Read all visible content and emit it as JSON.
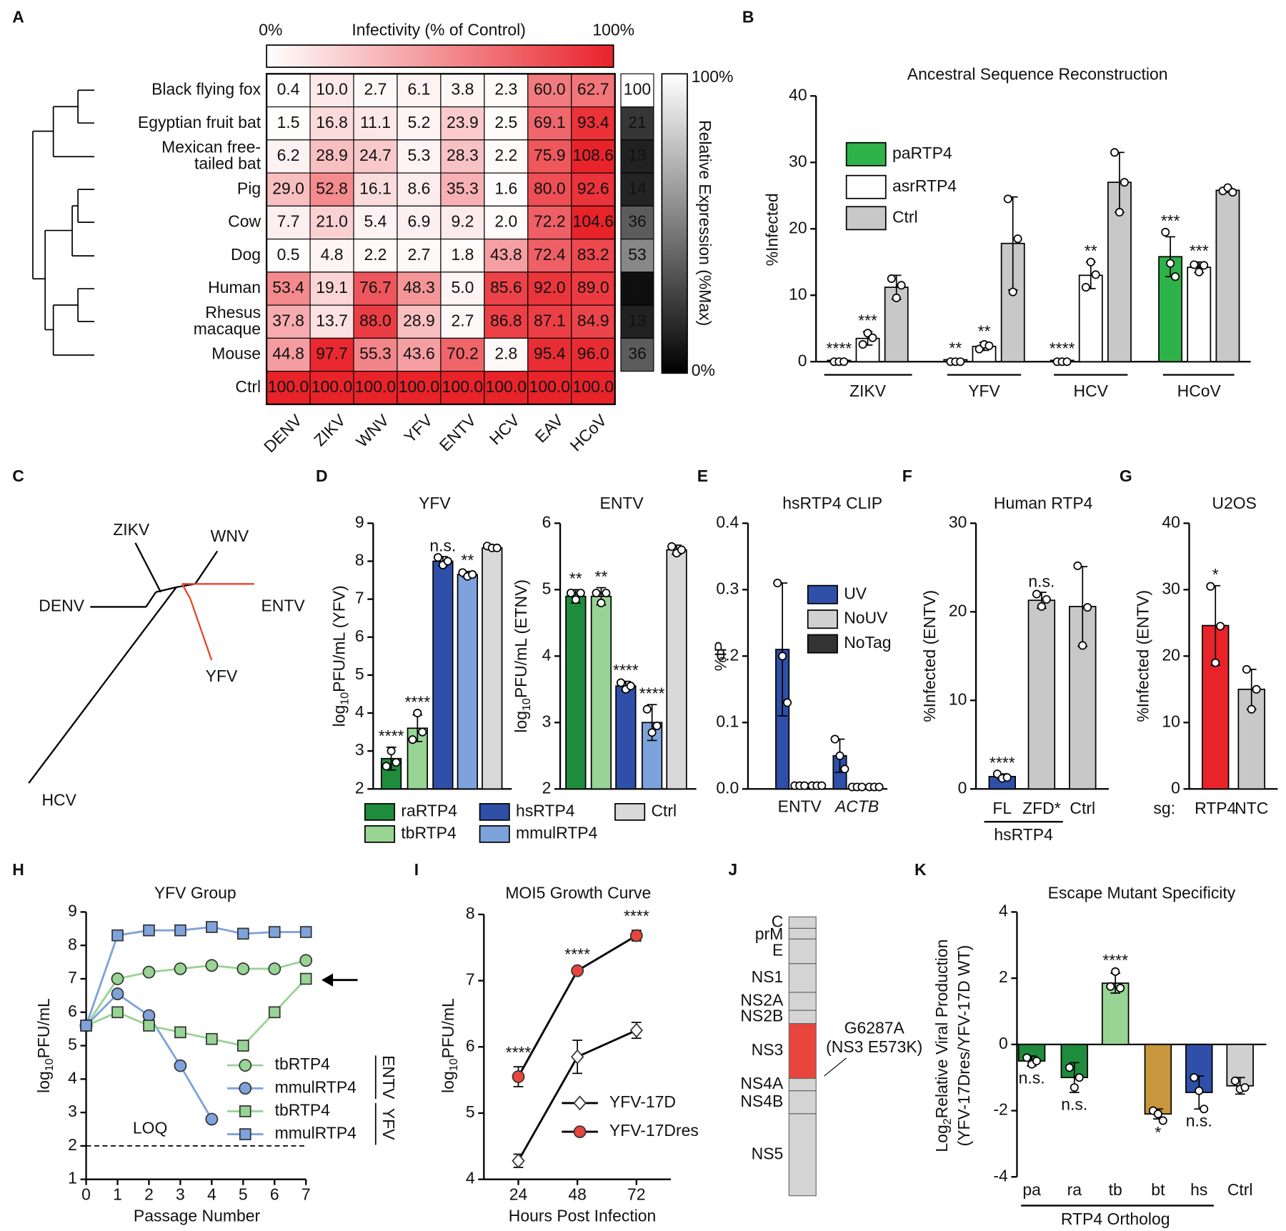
{
  "panel_labels": [
    "A",
    "B",
    "C",
    "D",
    "E",
    "F",
    "G",
    "H",
    "I",
    "J",
    "K"
  ],
  "tree_c": {
    "labels": [
      "ZIKV",
      "WNV",
      "DENV",
      "ENTV",
      "YFV",
      "HCV"
    ]
  },
  "genome_j": {
    "segments": [
      "C",
      "prM",
      "E",
      "NS1",
      "NS2A",
      "NS2B",
      "NS3",
      "NS4A",
      "NS4B",
      "NS5"
    ],
    "highlight": "NS3",
    "mutation": "G6287A",
    "mutation_detail": "(NS3 E573K)"
  },
  "chart_data": [
    {
      "type": "heatmap",
      "title": "Infectivity (% of Control)",
      "color": "#e8232a",
      "clim": [
        0,
        100
      ],
      "colorbar_ticks": [
        {
          "value": 0,
          "label": "0%"
        },
        {
          "value": 100,
          "label": "100%"
        }
      ],
      "rows": [
        "Black flying fox",
        "Egyptian fruit bat",
        [
          "Mexican free-",
          "tailed bat"
        ],
        "Pig",
        "Cow",
        "Dog",
        "Human",
        [
          "Rhesus",
          "macaque"
        ],
        "Mouse",
        "Ctrl"
      ],
      "columns": [
        "DENV",
        "ZIKV",
        "WNV",
        "YFV",
        "ENTV",
        "HCV",
        "EAV",
        "HCoV"
      ],
      "values": [
        [
          0.4,
          10.0,
          2.7,
          6.1,
          3.8,
          2.3,
          60.0,
          62.7
        ],
        [
          1.5,
          16.8,
          11.1,
          5.2,
          23.9,
          2.5,
          69.1,
          93.4
        ],
        [
          6.2,
          28.9,
          24.7,
          5.3,
          28.3,
          2.2,
          75.9,
          108.6
        ],
        [
          29.0,
          52.8,
          16.1,
          8.6,
          35.3,
          1.6,
          80.0,
          92.6
        ],
        [
          7.7,
          21.0,
          5.4,
          6.9,
          9.2,
          2.0,
          72.2,
          104.6
        ],
        [
          0.5,
          4.8,
          2.2,
          2.7,
          1.8,
          43.8,
          72.4,
          83.2
        ],
        [
          53.4,
          19.1,
          76.7,
          48.3,
          5.0,
          85.6,
          92.0,
          89.0
        ],
        [
          37.8,
          13.7,
          88.0,
          28.9,
          2.7,
          86.8,
          87.1,
          84.9
        ],
        [
          44.8,
          97.7,
          55.3,
          43.6,
          70.2,
          2.8,
          95.4,
          96.0
        ],
        [
          100.0,
          100.0,
          100.0,
          100.0,
          100.0,
          100.0,
          100.0,
          100.0
        ]
      ],
      "value_labels": [
        [
          "0.4",
          "10.0",
          "2.7",
          "6.1",
          "3.8",
          "2.3",
          "60.0",
          "62.7"
        ],
        [
          "1.5",
          "16.8",
          "11.1",
          "5.2",
          "23.9",
          "2.5",
          "69.1",
          "93.4"
        ],
        [
          "6.2",
          "28.9",
          "24.7",
          "5.3",
          "28.3",
          "2.2",
          "75.9",
          "108.6"
        ],
        [
          "29.0",
          "52.8",
          "16.1",
          "8.6",
          "35.3",
          "1.6",
          "80.0",
          "92.6"
        ],
        [
          "7.7",
          "21.0",
          "5.4",
          "6.9",
          "9.2",
          "2.0",
          "72.2",
          "104.6"
        ],
        [
          "0.5",
          "4.8",
          "2.2",
          "2.7",
          "1.8",
          "43.8",
          "72.4",
          "83.2"
        ],
        [
          "53.4",
          "19.1",
          "76.7",
          "48.3",
          "5.0",
          "85.6",
          "92.0",
          "89.0"
        ],
        [
          "37.8",
          "13.7",
          "88.0",
          "28.9",
          "2.7",
          "86.8",
          "87.1",
          "84.9"
        ],
        [
          "44.8",
          "97.7",
          "55.3",
          "43.6",
          "70.2",
          "2.8",
          "95.4",
          "96.0"
        ],
        [
          "100.0",
          "100.0",
          "100.0",
          "100.0",
          "100.0",
          "100.0",
          "100.0",
          "100.0"
        ]
      ],
      "expression": {
        "title": "Relative Expression (%Max)",
        "clim": [
          0,
          100
        ],
        "colorbar_ticks": [
          {
            "value": 100,
            "label": "100%"
          },
          {
            "value": 0,
            "label": "0%"
          }
        ],
        "values": [
          100,
          21,
          13,
          14,
          36,
          53,
          6,
          13,
          36
        ]
      }
    },
    {
      "type": "bar",
      "title": "Ancestral  Sequence  Reconstruction",
      "y_label": "%Infected",
      "ylim": [
        0,
        40
      ],
      "yticks": [
        0,
        10,
        20,
        30,
        40
      ],
      "categories": [
        "ZIKV",
        "YFV",
        "HCV",
        "HCoV"
      ],
      "series": [
        {
          "name": "paRTP4",
          "color": "#2db34a",
          "values": [
            0.2,
            0.3,
            0.2,
            15.8
          ],
          "errors": [
            0.1,
            0.1,
            0.1,
            3.0
          ],
          "points": [
            [
              0,
              0,
              0
            ],
            [
              0,
              0,
              0
            ],
            [
              0,
              0,
              0
            ],
            [
              19.5,
              14.8,
              12.8
            ]
          ],
          "annotations": [
            "****",
            "**",
            "****",
            "***"
          ]
        },
        {
          "name": "asrRTP4",
          "color": "#ffffff",
          "values": [
            3.5,
            2.3,
            13.0,
            14.2
          ],
          "errors": [
            1.0,
            0.6,
            2.0,
            0.8
          ],
          "points": [
            [
              2.6,
              4.3,
              3.6
            ],
            [
              1.9,
              2.6,
              2.4
            ],
            [
              11.2,
              15.0,
              13.1
            ],
            [
              14.6,
              13.5,
              14.5
            ]
          ],
          "annotations": [
            "***",
            "**",
            "**",
            "***"
          ]
        },
        {
          "name": "Ctrl",
          "color": "#c8c8c8",
          "values": [
            11.2,
            17.8,
            27.0,
            25.8
          ],
          "errors": [
            1.8,
            7.0,
            4.5,
            0.3
          ],
          "points": [
            [
              12.5,
              9.6,
              11.5
            ],
            [
              24.5,
              10.5,
              18.5
            ],
            [
              31.5,
              22.5,
              27.0
            ],
            [
              25.7,
              26.2,
              25.5
            ]
          ],
          "annotations": [
            null,
            null,
            null,
            null
          ]
        }
      ]
    },
    {
      "type": "bar",
      "title": "YFV",
      "y_label": [
        "log",
        "10",
        "PFU/mL (YFV)"
      ],
      "ylim": [
        2,
        9
      ],
      "yticks": [
        2,
        3,
        4,
        5,
        6,
        7,
        8,
        9
      ],
      "categories": [
        "raRTP4",
        "tbRTP4",
        "hsRTP4",
        "mmulRTP4",
        "Ctrl"
      ],
      "colors": [
        "#1e8c3c",
        "#98d494",
        "#2f4fa8",
        "#7ea3dc",
        "#d9d9d9"
      ],
      "values": [
        2.8,
        3.6,
        8.0,
        7.65,
        8.35
      ],
      "errors": [
        0.3,
        0.35,
        0.12,
        0.08,
        0.05
      ],
      "points": [
        [
          2.6,
          3.0,
          2.7
        ],
        [
          3.3,
          4.0,
          3.5
        ],
        [
          8.1,
          7.9,
          8.0
        ],
        [
          7.7,
          7.6,
          7.65
        ],
        [
          8.4,
          8.35,
          8.35
        ]
      ],
      "annotations": [
        "****",
        "****",
        "n.s.",
        "**",
        null
      ]
    },
    {
      "type": "bar",
      "title": "ENTV",
      "y_label": [
        "log",
        "10",
        "PFU/mL (ETNV)"
      ],
      "ylim": [
        2,
        6
      ],
      "yticks": [
        2,
        3,
        4,
        5,
        6
      ],
      "colors": [
        "#1e8c3c",
        "#98d494",
        "#2f4fa8",
        "#7ea3dc",
        "#d9d9d9"
      ],
      "values": [
        4.9,
        4.9,
        3.55,
        3.0,
        5.6
      ],
      "errors": [
        0.1,
        0.13,
        0.07,
        0.27,
        0.07
      ],
      "points": [
        [
          4.95,
          4.85,
          4.95
        ],
        [
          4.95,
          4.8,
          4.95
        ],
        [
          3.6,
          3.5,
          3.55
        ],
        [
          3.2,
          2.85,
          2.95
        ],
        [
          5.65,
          5.55,
          5.6
        ]
      ],
      "annotations": [
        "**",
        "**",
        "****",
        "****",
        null
      ]
    },
    {
      "type": "bar",
      "title": "hsRTP4 CLIP",
      "y_label": "%IP",
      "ylim": [
        0,
        0.4
      ],
      "yticks": [
        {
          "value": 0,
          "label": "0.0"
        },
        {
          "value": 0.1,
          "label": "0.1"
        },
        {
          "value": 0.2,
          "label": "0.2"
        },
        {
          "value": 0.3,
          "label": "0.3"
        },
        {
          "value": 0.4,
          "label": "0.4"
        }
      ],
      "categories": [
        "ENTV",
        "ACTB"
      ],
      "category_styles": [
        "normal",
        "italic"
      ],
      "series": [
        {
          "name": "UV",
          "color": "#2f4fa8",
          "values": [
            0.21,
            0.05
          ],
          "errors": [
            0.1,
            0.025
          ],
          "points": [
            [
              0.31,
              0.2,
              0.13
            ],
            [
              0.075,
              0.05,
              0.03
            ]
          ],
          "annotations": [
            null,
            null
          ]
        },
        {
          "name": "NoUV",
          "color": "#d0d0d0",
          "values": [
            0.005,
            0.003
          ],
          "errors": [
            0.001,
            0.001
          ],
          "points": [
            [
              0.005,
              0.005,
              0.005
            ],
            [
              0.003,
              0.003,
              0.003
            ]
          ],
          "annotations": [
            null,
            null
          ]
        },
        {
          "name": "NoTag",
          "color": "#333333",
          "values": [
            0.005,
            0.003
          ],
          "errors": [
            0.001,
            0.001
          ],
          "points": [
            [
              0.005,
              0.005,
              0.005
            ],
            [
              0.003,
              0.003,
              0.003
            ]
          ],
          "annotations": [
            null,
            null
          ]
        }
      ]
    },
    {
      "type": "bar",
      "title": "Human  RTP4",
      "y_label": "%Infected (ENTV)",
      "ylim": [
        0,
        30
      ],
      "yticks": [
        0,
        10,
        20,
        30
      ],
      "categories": [
        "FL",
        "ZFD*",
        "Ctrl"
      ],
      "group_label": "hsRTP4",
      "colors": [
        "#2f4fa8",
        "#c8c8c8",
        "#c8c8c8"
      ],
      "values": [
        1.4,
        21.3,
        20.6
      ],
      "errors": [
        0.3,
        0.9,
        4.5
      ],
      "points": [
        [
          1.7,
          1.2,
          1.3
        ],
        [
          22.0,
          20.6,
          21.4
        ],
        [
          25.2,
          16.2,
          20.5
        ]
      ],
      "annotations": [
        "****",
        "n.s.",
        null
      ]
    },
    {
      "type": "bar",
      "title": "U2OS",
      "y_label": "%Infected (ENTV)",
      "ylim": [
        0,
        40
      ],
      "yticks": [
        0,
        10,
        20,
        30,
        40
      ],
      "category_prefix": "sg:",
      "categories": [
        "RTP4",
        "NTC"
      ],
      "colors": [
        "#e8232a",
        "#c8c8c8"
      ],
      "values": [
        24.6,
        15.0
      ],
      "errors": [
        6.0,
        3.0
      ],
      "points": [
        [
          30.5,
          19.0,
          24.5
        ],
        [
          18.0,
          12.0,
          15.0
        ]
      ],
      "annotations": [
        "*",
        null
      ]
    },
    {
      "type": "line",
      "title": "YFV Group",
      "x_label": "Passage  Number",
      "y_label": [
        "log",
        "10",
        "PFU/mL"
      ],
      "xlim": [
        0,
        7
      ],
      "xticks": [
        0,
        1,
        2,
        3,
        4,
        5,
        6,
        7
      ],
      "ylim": [
        1,
        9
      ],
      "yticks": [
        1,
        2,
        3,
        4,
        5,
        6,
        7,
        8,
        9
      ],
      "x": [
        0,
        1,
        2,
        3,
        4,
        5,
        6,
        7
      ],
      "loq": 2,
      "loq_label": "LOQ",
      "legend_groups": [
        "ENTV",
        "YFV"
      ],
      "series": [
        {
          "name": "tbRTP4",
          "color": "#98d494",
          "marker": "circle",
          "values": [
            5.6,
            7.0,
            7.2,
            7.3,
            7.4,
            7.3,
            7.3,
            7.55
          ]
        },
        {
          "name": "mmulRTP4",
          "color": "#7ea3dc",
          "marker": "circle",
          "values": [
            5.6,
            6.55,
            5.9,
            4.4,
            2.8,
            null,
            null,
            null
          ]
        },
        {
          "name": "tbRTP4",
          "color": "#98d494",
          "marker": "square",
          "values": [
            5.6,
            6.0,
            5.6,
            5.4,
            5.2,
            5.0,
            6.0,
            7.0
          ]
        },
        {
          "name": "mmulRTP4",
          "color": "#7ea3dc",
          "marker": "square",
          "values": [
            5.6,
            8.3,
            8.45,
            8.45,
            8.55,
            8.35,
            8.4,
            8.4
          ]
        }
      ]
    },
    {
      "type": "line",
      "title": "MOI5  Growth Curve",
      "x_label": "Hours Post Infection",
      "y_label": [
        "log",
        "10",
        "PFU/mL"
      ],
      "xlim": [
        10,
        86
      ],
      "xticks": [
        24,
        48,
        72
      ],
      "ylim": [
        4,
        8
      ],
      "yticks": [
        4,
        5,
        6,
        7,
        8
      ],
      "x": [
        24,
        48,
        72
      ],
      "line_color": "#000000",
      "series": [
        {
          "name": "YFV-17D",
          "color": "#ffffff",
          "marker": "diamond",
          "values": [
            4.28,
            5.85,
            6.25
          ],
          "errors": [
            0.1,
            0.25,
            0.12
          ]
        },
        {
          "name": "YFV-17Dres",
          "color": "#e8453c",
          "marker": "circle",
          "values": [
            5.55,
            7.15,
            7.68
          ],
          "errors": [
            0.15,
            0.03,
            0.08
          ],
          "annotations": [
            "****",
            "****",
            "****"
          ]
        }
      ]
    },
    {
      "type": "bar",
      "title": "Escape  Mutant  Specificity",
      "y_label": [
        "Log",
        "2",
        "Relative  Viral  Production"
      ],
      "y_label_2": "(YFV-17Dres/YFV-17D WT)",
      "ylim": [
        -4,
        4
      ],
      "yticks": [
        -4,
        -2,
        0,
        2,
        4
      ],
      "categories": [
        "pa",
        "ra",
        "tb",
        "bt",
        "hs",
        "Ctrl"
      ],
      "group_label": "RTP4 Ortholog",
      "colors": [
        "#1e8c3c",
        "#1e8c3c",
        "#98d494",
        "#c8963c",
        "#2f4fa8",
        "#d0d0d0"
      ],
      "values": [
        -0.5,
        -1.0,
        1.85,
        -2.1,
        -1.45,
        -1.25
      ],
      "errors": [
        0.15,
        0.45,
        0.3,
        0.15,
        0.5,
        0.25
      ],
      "points": [
        [
          -0.4,
          -0.6,
          -0.5
        ],
        [
          -0.7,
          -1.3,
          -1.0
        ],
        [
          1.75,
          2.2,
          1.7
        ],
        [
          -2.0,
          -2.1,
          -2.3
        ],
        [
          -1.0,
          -1.4,
          -1.95
        ],
        [
          -1.1,
          -1.35,
          -1.3
        ]
      ],
      "annotations": [
        "n.s.",
        "n.s.",
        "****",
        "*",
        "n.s.",
        null
      ]
    }
  ]
}
